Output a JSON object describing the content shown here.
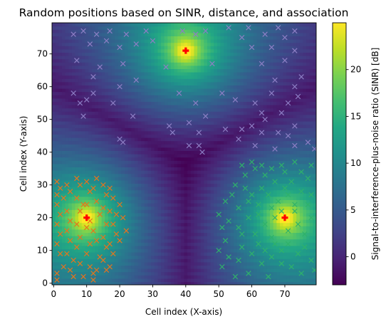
{
  "chart_data": {
    "type": "heatmap",
    "title": "Random positions based on SINR, distance, and association",
    "xlabel": "Cell index (X-axis)",
    "ylabel": "Cell index (Y-axis)",
    "colorbar_label": "Signal-to-interference-plus-noise ratio (SINR) [dB]",
    "colormap": "viridis",
    "xlim": [
      -0.5,
      79.5
    ],
    "ylim": [
      -0.5,
      79.5
    ],
    "clim": [
      -3,
      25
    ],
    "x_ticks": [
      0,
      10,
      20,
      30,
      40,
      50,
      60,
      70
    ],
    "y_ticks": [
      0,
      10,
      20,
      30,
      40,
      50,
      60,
      70
    ],
    "colorbar_ticks": [
      0,
      5,
      10,
      15,
      20
    ],
    "grid_size": [
      80,
      80
    ],
    "transmitters": [
      {
        "x": 10,
        "y": 20
      },
      {
        "x": 40,
        "y": 71
      },
      {
        "x": 70,
        "y": 20
      }
    ],
    "transmitter_marker": "P",
    "transmitter_color": "#ff0000",
    "association_colors": [
      "#e6731c",
      "#8c7ec4",
      "#2fb26a"
    ],
    "marker": "x",
    "series": [
      {
        "color": "#e6731c",
        "points": [
          [
            1,
            31
          ],
          [
            1,
            27
          ],
          [
            2,
            29
          ],
          [
            1,
            24
          ],
          [
            3,
            26
          ],
          [
            2,
            21
          ],
          [
            1,
            18
          ],
          [
            2,
            15
          ],
          [
            1,
            12
          ],
          [
            2,
            9
          ],
          [
            3,
            5
          ],
          [
            1,
            3
          ],
          [
            1,
            1
          ],
          [
            4,
            30
          ],
          [
            5,
            28
          ],
          [
            4,
            22
          ],
          [
            5,
            19
          ],
          [
            4,
            16
          ],
          [
            5,
            13
          ],
          [
            4,
            9
          ],
          [
            5,
            4
          ],
          [
            6,
            7
          ],
          [
            6,
            2
          ],
          [
            7,
            32
          ],
          [
            8,
            30
          ],
          [
            7,
            26
          ],
          [
            8,
            22
          ],
          [
            7,
            18
          ],
          [
            8,
            14
          ],
          [
            7,
            11
          ],
          [
            8,
            6
          ],
          [
            9,
            2
          ],
          [
            10,
            31
          ],
          [
            11,
            28
          ],
          [
            10,
            24
          ],
          [
            11,
            19
          ],
          [
            10,
            17
          ],
          [
            11,
            12
          ],
          [
            10,
            9
          ],
          [
            11,
            5
          ],
          [
            12,
            1
          ],
          [
            9,
            24
          ],
          [
            13,
            32
          ],
          [
            12,
            29
          ],
          [
            13,
            25
          ],
          [
            14,
            21
          ],
          [
            12,
            16
          ],
          [
            13,
            13
          ],
          [
            14,
            8
          ],
          [
            13,
            4
          ],
          [
            12,
            3
          ],
          [
            15,
            30
          ],
          [
            16,
            27
          ],
          [
            15,
            23
          ],
          [
            16,
            18
          ],
          [
            15,
            14
          ],
          [
            16,
            11
          ],
          [
            15,
            7
          ],
          [
            16,
            4
          ],
          [
            17,
            29
          ],
          [
            18,
            26
          ],
          [
            17,
            22
          ],
          [
            18,
            18
          ],
          [
            17,
            12
          ],
          [
            18,
            9
          ],
          [
            17,
            5
          ],
          [
            19,
            21
          ],
          [
            19,
            15
          ],
          [
            20,
            24
          ],
          [
            21,
            20
          ],
          [
            20,
            13
          ],
          [
            22,
            16
          ]
        ]
      },
      {
        "color": "#8c7ec4",
        "points": [
          [
            6,
            76
          ],
          [
            9,
            77
          ],
          [
            11,
            73
          ],
          [
            13,
            76
          ],
          [
            16,
            74
          ],
          [
            17,
            77
          ],
          [
            20,
            72
          ],
          [
            22,
            76
          ],
          [
            25,
            73
          ],
          [
            28,
            77
          ],
          [
            30,
            74
          ],
          [
            39,
            77
          ],
          [
            43,
            76
          ],
          [
            46,
            77
          ],
          [
            53,
            78
          ],
          [
            57,
            75
          ],
          [
            59,
            78
          ],
          [
            64,
            76
          ],
          [
            66,
            72
          ],
          [
            68,
            78
          ],
          [
            70,
            75
          ],
          [
            73,
            77
          ],
          [
            73,
            71
          ],
          [
            7,
            68
          ],
          [
            12,
            63
          ],
          [
            14,
            66
          ],
          [
            21,
            67
          ],
          [
            25,
            62
          ],
          [
            34,
            66
          ],
          [
            48,
            67
          ],
          [
            60,
            72
          ],
          [
            63,
            67
          ],
          [
            67,
            62
          ],
          [
            70,
            68
          ],
          [
            73,
            60
          ],
          [
            75,
            63
          ],
          [
            6,
            58
          ],
          [
            8,
            55
          ],
          [
            9,
            51
          ],
          [
            10,
            56
          ],
          [
            12,
            58
          ],
          [
            18,
            55
          ],
          [
            20,
            60
          ],
          [
            38,
            58
          ],
          [
            43,
            55
          ],
          [
            51,
            58
          ],
          [
            55,
            56
          ],
          [
            61,
            55
          ],
          [
            63,
            52
          ],
          [
            66,
            58
          ],
          [
            69,
            52
          ],
          [
            71,
            55
          ],
          [
            74,
            57
          ],
          [
            24,
            51
          ],
          [
            35,
            48
          ],
          [
            41,
            49
          ],
          [
            44,
            46
          ],
          [
            46,
            51
          ],
          [
            52,
            47
          ],
          [
            57,
            47
          ],
          [
            60,
            48
          ],
          [
            64,
            50
          ],
          [
            68,
            46
          ],
          [
            71,
            45
          ],
          [
            73,
            48
          ],
          [
            20,
            44
          ],
          [
            21,
            43
          ],
          [
            36,
            46
          ],
          [
            41,
            42
          ],
          [
            44,
            42
          ],
          [
            45,
            40
          ],
          [
            56,
            44
          ],
          [
            61,
            42
          ],
          [
            63,
            46
          ],
          [
            67,
            41
          ],
          [
            73,
            42
          ],
          [
            77,
            43
          ],
          [
            79,
            41
          ]
        ]
      },
      {
        "color": "#2fb26a",
        "points": [
          [
            55,
            30
          ],
          [
            57,
            36
          ],
          [
            58,
            33
          ],
          [
            60,
            37
          ],
          [
            61,
            35
          ],
          [
            63,
            36
          ],
          [
            64,
            33
          ],
          [
            66,
            35
          ],
          [
            67,
            31
          ],
          [
            69,
            36
          ],
          [
            70,
            34
          ],
          [
            72,
            31
          ],
          [
            73,
            37
          ],
          [
            75,
            34
          ],
          [
            77,
            32
          ],
          [
            78,
            36
          ],
          [
            52,
            25
          ],
          [
            54,
            27
          ],
          [
            56,
            23
          ],
          [
            58,
            29
          ],
          [
            59,
            25
          ],
          [
            60,
            27
          ],
          [
            62,
            24
          ],
          [
            63,
            29
          ],
          [
            65,
            27
          ],
          [
            66,
            23
          ],
          [
            68,
            25
          ],
          [
            70,
            29
          ],
          [
            71,
            27
          ],
          [
            73,
            24
          ],
          [
            75,
            28
          ],
          [
            77,
            24
          ],
          [
            78,
            27
          ],
          [
            50,
            21
          ],
          [
            51,
            17
          ],
          [
            52,
            13
          ],
          [
            53,
            19
          ],
          [
            56,
            17
          ],
          [
            57,
            15
          ],
          [
            59,
            20
          ],
          [
            61,
            15
          ],
          [
            62,
            21
          ],
          [
            64,
            18
          ],
          [
            66,
            14
          ],
          [
            67,
            20
          ],
          [
            69,
            22
          ],
          [
            71,
            16
          ],
          [
            73,
            22
          ],
          [
            74,
            18
          ],
          [
            76,
            15
          ],
          [
            78,
            20
          ],
          [
            50,
            10
          ],
          [
            51,
            5
          ],
          [
            53,
            8
          ],
          [
            55,
            2
          ],
          [
            56,
            7
          ],
          [
            57,
            11
          ],
          [
            59,
            3
          ],
          [
            60,
            9
          ],
          [
            62,
            12
          ],
          [
            63,
            6
          ],
          [
            64,
            10
          ],
          [
            65,
            2
          ],
          [
            66,
            8
          ],
          [
            67,
            12
          ],
          [
            69,
            6
          ],
          [
            69,
            10
          ],
          [
            71,
            12
          ],
          [
            72,
            5
          ],
          [
            74,
            9
          ],
          [
            75,
            3
          ],
          [
            76,
            11
          ],
          [
            78,
            7
          ],
          [
            79,
            4
          ]
        ]
      }
    ]
  }
}
